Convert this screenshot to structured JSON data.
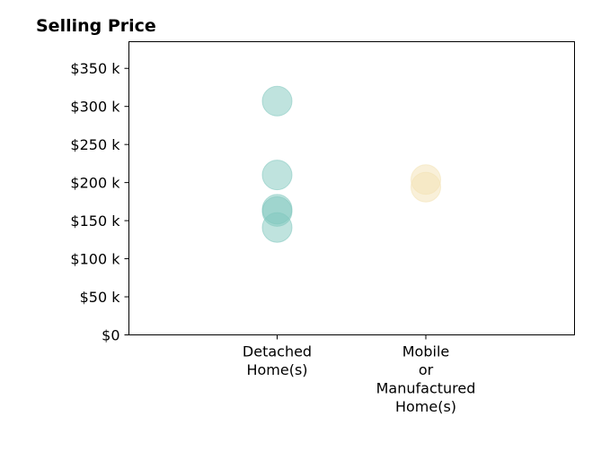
{
  "chart_data": {
    "type": "scatter",
    "title": "Selling Price",
    "xlabel": "",
    "ylabel": "",
    "ylim": [
      0,
      385000
    ],
    "yticks": [
      {
        "value": 0,
        "label": "$0"
      },
      {
        "value": 50000,
        "label": "$50 k"
      },
      {
        "value": 100000,
        "label": "$100 k"
      },
      {
        "value": 150000,
        "label": "$150 k"
      },
      {
        "value": 200000,
        "label": "$200 k"
      },
      {
        "value": 250000,
        "label": "$250 k"
      },
      {
        "value": 300000,
        "label": "$300 k"
      },
      {
        "value": 350000,
        "label": "$350 k"
      }
    ],
    "categories": [
      {
        "label_lines": [
          "Detached",
          "Home(s)"
        ]
      },
      {
        "label_lines": [
          "Mobile",
          "or",
          "Manufactured",
          "Home(s)"
        ]
      }
    ],
    "series": [
      {
        "category_index": 0,
        "color": "#7fc7bd",
        "values": [
          307000,
          210000,
          165000,
          162000,
          141000
        ]
      },
      {
        "category_index": 1,
        "color": "#f3e2b3",
        "values": [
          204000,
          194000
        ]
      }
    ],
    "grid": false,
    "legend": "none"
  }
}
